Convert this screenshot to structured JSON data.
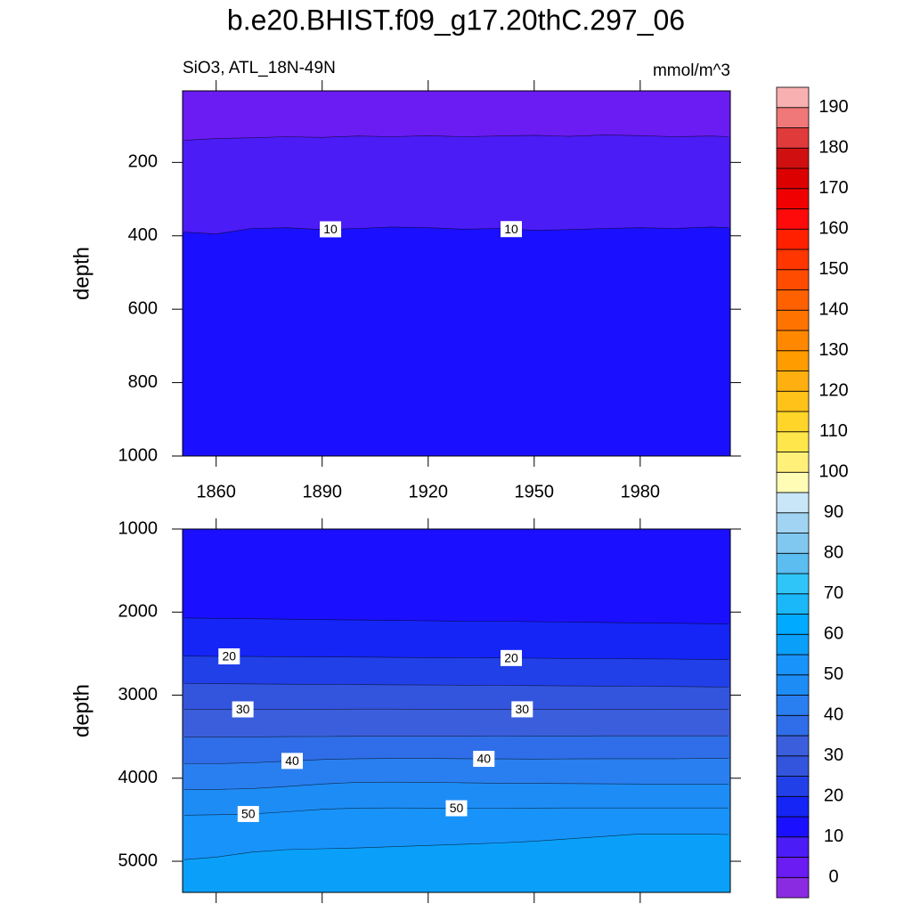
{
  "title": "b.e20.BHIST.f09_g17.20thC.297_06",
  "chart_data": [
    {
      "type": "contour",
      "left_string": "SiO3, ATL_18N-49N",
      "right_string": "mmol/m^3",
      "y_label": "depth",
      "y_reversed": true,
      "xtick_labels": true,
      "x": [
        1851,
        1860,
        1870,
        1880,
        1890,
        1900,
        1910,
        1920,
        1930,
        1940,
        1950,
        1960,
        1970,
        1980,
        1990,
        2000,
        2005
      ],
      "xlim": [
        1850.5,
        2005.5
      ],
      "xticks": [
        1860,
        1890,
        1920,
        1950,
        1980
      ],
      "ylim": [
        5,
        1000
      ],
      "yticks": [
        200,
        400,
        600,
        800,
        1000
      ],
      "contours": [
        {
          "level": 5,
          "values": [
            140,
            135,
            133,
            130,
            132,
            128,
            130,
            127,
            130,
            128,
            126,
            129,
            125,
            127,
            130,
            128,
            130
          ]
        },
        {
          "level": 10,
          "values": [
            390,
            395,
            380,
            378,
            383,
            380,
            376,
            378,
            382,
            380,
            385,
            383,
            380,
            378,
            380,
            376,
            378
          ]
        }
      ]
    },
    {
      "type": "contour",
      "y_label": "depth",
      "y_reversed": true,
      "xtick_labels": false,
      "x": [
        1851,
        1860,
        1870,
        1880,
        1890,
        1900,
        1910,
        1920,
        1930,
        1940,
        1950,
        1960,
        1970,
        1980,
        1990,
        2000,
        2005
      ],
      "xlim": [
        1850.5,
        2005.5
      ],
      "xticks": [
        1860,
        1890,
        1920,
        1950,
        1980
      ],
      "ylim": [
        1000,
        5375
      ],
      "yticks": [
        1000,
        2000,
        3000,
        4000,
        5000
      ],
      "contours": [
        {
          "level": 15,
          "values": [
            2070,
            2075,
            2080,
            2085,
            2090,
            2095,
            2100,
            2105,
            2110,
            2110,
            2115,
            2120,
            2125,
            2130,
            2135,
            2140,
            2145
          ]
        },
        {
          "level": 20,
          "values": [
            2530,
            2532,
            2535,
            2538,
            2540,
            2542,
            2545,
            2548,
            2550,
            2552,
            2555,
            2558,
            2560,
            2563,
            2566,
            2570,
            2572
          ]
        },
        {
          "level": 25,
          "values": [
            2860,
            2862,
            2865,
            2868,
            2870,
            2872,
            2875,
            2878,
            2880,
            2882,
            2885,
            2888,
            2890,
            2893,
            2896,
            2900,
            2903
          ]
        },
        {
          "level": 30,
          "values": [
            3170,
            3170,
            3172,
            3172,
            3170,
            3168,
            3168,
            3170,
            3172,
            3172,
            3170,
            3170,
            3172,
            3172,
            3170,
            3170,
            3170
          ]
        },
        {
          "level": 35,
          "values": [
            3505,
            3505,
            3503,
            3500,
            3498,
            3495,
            3495,
            3495,
            3495,
            3493,
            3492,
            3492,
            3490,
            3490,
            3490,
            3490,
            3490
          ]
        },
        {
          "level": 40,
          "values": [
            3825,
            3825,
            3815,
            3795,
            3775,
            3765,
            3762,
            3762,
            3765,
            3768,
            3770,
            3768,
            3765,
            3765,
            3765,
            3762,
            3762
          ]
        },
        {
          "level": 45,
          "values": [
            4135,
            4135,
            4125,
            4100,
            4070,
            4050,
            4048,
            4050,
            4055,
            4060,
            4062,
            4065,
            4068,
            4070,
            4070,
            4070,
            4070
          ]
        },
        {
          "level": 50,
          "values": [
            4445,
            4440,
            4430,
            4405,
            4375,
            4360,
            4358,
            4360,
            4362,
            4362,
            4360,
            4358,
            4358,
            4358,
            4358,
            4358,
            4358
          ]
        },
        {
          "level": 55,
          "values": [
            4980,
            4950,
            4890,
            4860,
            4850,
            4840,
            4825,
            4810,
            4795,
            4780,
            4760,
            4730,
            4700,
            4670,
            4670,
            4675,
            4678
          ]
        }
      ]
    }
  ],
  "colorbar": {
    "levels": [
      0,
      5,
      10,
      15,
      20,
      25,
      30,
      35,
      40,
      45,
      50,
      55,
      60,
      65,
      70,
      75,
      80,
      85,
      90,
      95,
      100,
      105,
      110,
      115,
      120,
      125,
      130,
      135,
      140,
      145,
      150,
      155,
      160,
      165,
      170,
      175,
      180,
      185,
      190
    ],
    "colors": [
      "#8a2be2",
      "#6a1cf2",
      "#4b1cf5",
      "#1a10ff",
      "#1525f5",
      "#2240e8",
      "#3355dd",
      "#3b5fdc",
      "#2f6ee8",
      "#2a7ff0",
      "#1e8cf5",
      "#1893fa",
      "#0aa0fa",
      "#00aaff",
      "#1ab8f8",
      "#30c5f8",
      "#5bbdf0",
      "#80c8f0",
      "#a0d4f2",
      "#c8e6f8",
      "#fffcb5",
      "#fff07a",
      "#ffe64a",
      "#ffd52a",
      "#ffc218",
      "#ffb010",
      "#ff9c00",
      "#ff8800",
      "#ff7400",
      "#ff6000",
      "#ff4c00",
      "#ff3600",
      "#ff2000",
      "#ff0a0a",
      "#f00000",
      "#dd0000",
      "#d01010",
      "#e03a3a",
      "#f07878",
      "#f8b0b0"
    ],
    "ticks": [
      0,
      10,
      20,
      30,
      40,
      50,
      60,
      70,
      80,
      90,
      100,
      110,
      120,
      130,
      140,
      150,
      160,
      170,
      180,
      190
    ]
  }
}
